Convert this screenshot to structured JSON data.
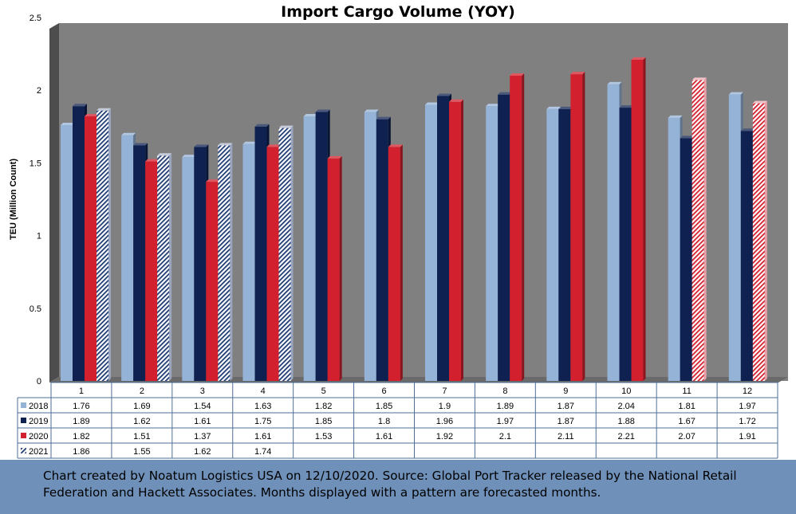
{
  "chart_data": {
    "type": "bar",
    "title": "Import Cargo Volume (YOY)",
    "ylabel": "TEU (Million Count)",
    "xlabel": "",
    "ylim": [
      0,
      2.5
    ],
    "yticks": [
      "0",
      "0.5",
      "1",
      "1.5",
      "2",
      "2.5"
    ],
    "categories": [
      "1",
      "2",
      "3",
      "4",
      "5",
      "6",
      "7",
      "8",
      "9",
      "10",
      "11",
      "12"
    ],
    "grid": false,
    "legend": "data-table-left",
    "series": [
      {
        "name": "2018",
        "color": "#95b3d7",
        "pattern": "solid",
        "values": [
          1.76,
          1.69,
          1.54,
          1.63,
          1.82,
          1.85,
          1.9,
          1.89,
          1.87,
          2.04,
          1.81,
          1.97
        ],
        "labels": [
          "1.76",
          "1.69",
          "1.54",
          "1.63",
          "1.82",
          "1.85",
          "1.9",
          "1.89",
          "1.87",
          "2.04",
          "1.81",
          "1.97"
        ],
        "forecast": [
          false,
          false,
          false,
          false,
          false,
          false,
          false,
          false,
          false,
          false,
          false,
          false
        ]
      },
      {
        "name": "2019",
        "color": "#0e2150",
        "pattern": "solid",
        "values": [
          1.89,
          1.62,
          1.61,
          1.75,
          1.85,
          1.8,
          1.96,
          1.97,
          1.87,
          1.88,
          1.67,
          1.72
        ],
        "labels": [
          "1.89",
          "1.62",
          "1.61",
          "1.75",
          "1.85",
          "1.8",
          "1.96",
          "1.97",
          "1.87",
          "1.88",
          "1.67",
          "1.72"
        ],
        "forecast": [
          false,
          false,
          false,
          false,
          false,
          false,
          false,
          false,
          false,
          false,
          false,
          false
        ]
      },
      {
        "name": "2020",
        "color": "#d3202e",
        "pattern": "solid",
        "values": [
          1.82,
          1.51,
          1.37,
          1.61,
          1.53,
          1.61,
          1.92,
          2.1,
          2.11,
          2.21,
          2.07,
          1.91
        ],
        "labels": [
          "1.82",
          "1.51",
          "1.37",
          "1.61",
          "1.53",
          "1.61",
          "1.92",
          "2.1",
          "2.11",
          "2.21",
          "2.07",
          "1.91"
        ],
        "forecast": [
          false,
          false,
          false,
          false,
          false,
          false,
          false,
          false,
          false,
          false,
          true,
          true
        ]
      },
      {
        "name": "2021",
        "color": "#1f3b73",
        "pattern": "hatched",
        "values": [
          1.86,
          1.55,
          1.62,
          1.74,
          null,
          null,
          null,
          null,
          null,
          null,
          null,
          null
        ],
        "labels": [
          "1.86",
          "1.55",
          "1.62",
          "1.74",
          "",
          "",
          "",
          "",
          "",
          "",
          "",
          ""
        ],
        "forecast": [
          true,
          true,
          true,
          true,
          false,
          false,
          false,
          false,
          false,
          false,
          false,
          false
        ]
      }
    ]
  },
  "caption": "Chart created by Noatum Logistics USA on 12/10/2020. Source: Global Port Tracker released by the National Retail Federation and Hackett Associates. Months displayed with a pattern are forecasted months."
}
